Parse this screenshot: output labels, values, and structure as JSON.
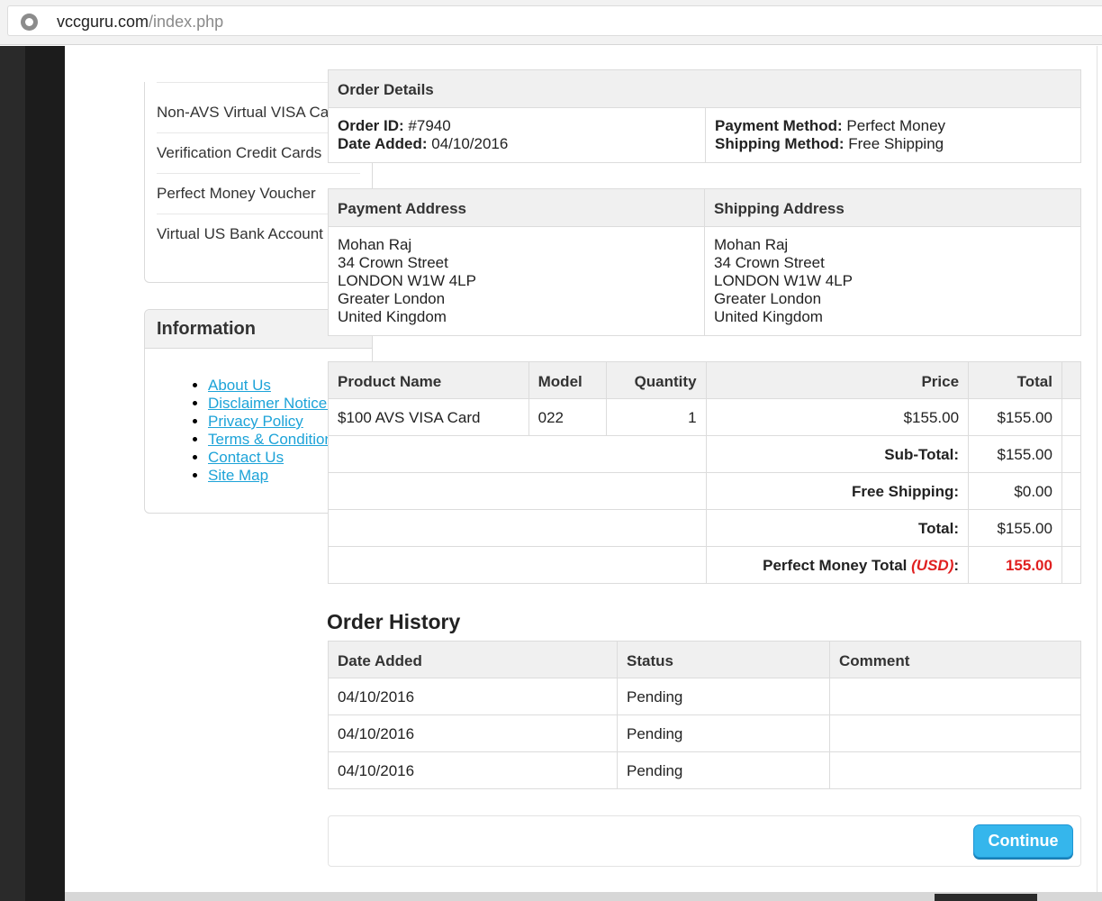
{
  "browser": {
    "url_domain": "vccguru.com",
    "url_path": "/index.php"
  },
  "sidebar": {
    "categories": [
      "Non-AVS Virtual VISA Cards",
      "Verification Credit Cards",
      "Perfect Money Voucher",
      "Virtual US Bank Account"
    ],
    "information": {
      "title": "Information",
      "links": [
        "About Us",
        "Disclaimer Notice!",
        "Privacy Policy",
        "Terms & Conditions",
        "Contact Us",
        "Site Map"
      ]
    }
  },
  "order_details": {
    "title": "Order Details",
    "order_id_label": "Order ID:",
    "order_id": "#7940",
    "date_added_label": "Date Added:",
    "date_added": "04/10/2016",
    "payment_method_label": "Payment Method:",
    "payment_method": "Perfect Money",
    "shipping_method_label": "Shipping Method:",
    "shipping_method": "Free Shipping"
  },
  "addresses": {
    "payment_title": "Payment Address",
    "shipping_title": "Shipping Address",
    "payment_lines": [
      "Mohan Raj",
      "34 Crown Street",
      "LONDON W1W 4LP",
      "Greater London",
      "United Kingdom"
    ],
    "shipping_lines": [
      "Mohan Raj",
      "34 Crown Street",
      "LONDON W1W 4LP",
      "Greater London",
      "United Kingdom"
    ]
  },
  "products": {
    "headers": {
      "name": "Product Name",
      "model": "Model",
      "quantity": "Quantity",
      "price": "Price",
      "total": "Total"
    },
    "rows": [
      {
        "name": "$100 AVS VISA Card",
        "model": "022",
        "quantity": "1",
        "price": "$155.00",
        "total": "$155.00"
      }
    ],
    "totals": [
      {
        "label": "Sub-Total:",
        "value": "$155.00"
      },
      {
        "label": "Free Shipping:",
        "value": "$0.00"
      },
      {
        "label": "Total:",
        "value": "$155.00"
      }
    ],
    "pm_total_label": "Perfect Money Total",
    "pm_total_currency": "(USD)",
    "pm_total_value": "155.00"
  },
  "history": {
    "title": "Order History",
    "headers": {
      "date": "Date Added",
      "status": "Status",
      "comment": "Comment"
    },
    "rows": [
      {
        "date": "04/10/2016",
        "status": "Pending",
        "comment": ""
      },
      {
        "date": "04/10/2016",
        "status": "Pending",
        "comment": ""
      },
      {
        "date": "04/10/2016",
        "status": "Pending",
        "comment": ""
      }
    ]
  },
  "buttons": {
    "continue": "Continue"
  },
  "colors": {
    "link": "#1da3d8",
    "accent_button": "#35b6ec",
    "price_highlight": "#e02020"
  },
  "icons": {
    "site": "site-info-icon"
  }
}
